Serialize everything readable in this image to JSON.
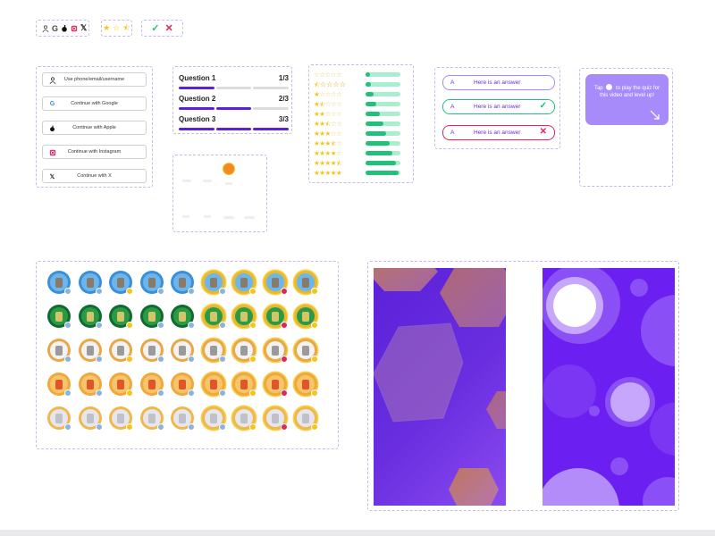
{
  "colors": {
    "brand": "#5b21d9",
    "purple_light": "#a78bfa",
    "green": "#22c17a",
    "red": "#e0245e",
    "star": "#f5c518"
  },
  "icons_row": [
    "user-icon",
    "google-icon",
    "apple-icon",
    "instagram-icon",
    "x-icon"
  ],
  "rating_row": {
    "value": 2.5,
    "max": 3
  },
  "check_row": [
    "check-icon",
    "cross-icon"
  ],
  "login": {
    "buttons": [
      {
        "icon": "user-icon",
        "label": "Use phone/email/username"
      },
      {
        "icon": "google-icon",
        "label": "Continue with Google"
      },
      {
        "icon": "apple-icon",
        "label": "Continue with Apple"
      },
      {
        "icon": "instagram-icon",
        "label": "Continue with Instagram"
      },
      {
        "icon": "x-icon",
        "label": "Continue with X"
      }
    ]
  },
  "questions": [
    {
      "label": "Question 1",
      "count": "1/3",
      "progress": 1
    },
    {
      "label": "Question 2",
      "count": "2/3",
      "progress": 2
    },
    {
      "label": "Question 3",
      "count": "3/3",
      "progress": 3
    }
  ],
  "ratings": [
    {
      "stars": 0,
      "fill": 0.12
    },
    {
      "stars": 0.5,
      "fill": 0.15
    },
    {
      "stars": 1,
      "fill": 0.22
    },
    {
      "stars": 1.5,
      "fill": 0.3
    },
    {
      "stars": 2,
      "fill": 0.42
    },
    {
      "stars": 2.5,
      "fill": 0.5
    },
    {
      "stars": 3,
      "fill": 0.6
    },
    {
      "stars": 3.5,
      "fill": 0.68
    },
    {
      "stars": 4,
      "fill": 0.78
    },
    {
      "stars": 4.5,
      "fill": 0.86
    },
    {
      "stars": 5,
      "fill": 0.95
    }
  ],
  "answers": [
    {
      "letter": "A",
      "text": "Here is an answer",
      "state": "default",
      "mark": ""
    },
    {
      "letter": "A",
      "text": "Here is an answer",
      "state": "correct",
      "mark": "✓"
    },
    {
      "letter": "A",
      "text": "Here is an answer",
      "state": "wrong",
      "mark": "✕"
    }
  ],
  "tip": {
    "before": "Tap",
    "after": "to play the quiz for this video and level up!"
  },
  "avatar_rows": [
    {
      "ring": "#3b8fd9",
      "inner": "#6cb6ee",
      "figure": "#8a7a6a"
    },
    {
      "ring": "#0f6b2e",
      "inner": "#2a9a46",
      "figure": "#d4c46a"
    },
    {
      "ring": "#e8a84a",
      "inner": "#f2f2f2",
      "figure": "#9a9a9a"
    },
    {
      "ring": "#f0a83a",
      "inner": "#f6c46a",
      "figure": "#e0552a"
    },
    {
      "ring": "#f0b84a",
      "inner": "#e6e6ee",
      "figure": "#c0c0c8"
    }
  ],
  "avatar_columns": 9,
  "avatar_grid_rings": [
    "#3b8fd9",
    "#3b8fd9",
    "#3b8fd9",
    "#3b8fd9",
    "#3b8fd9",
    "#e8b830",
    "#e8b830",
    "#e8b830",
    "#e8b830"
  ]
}
